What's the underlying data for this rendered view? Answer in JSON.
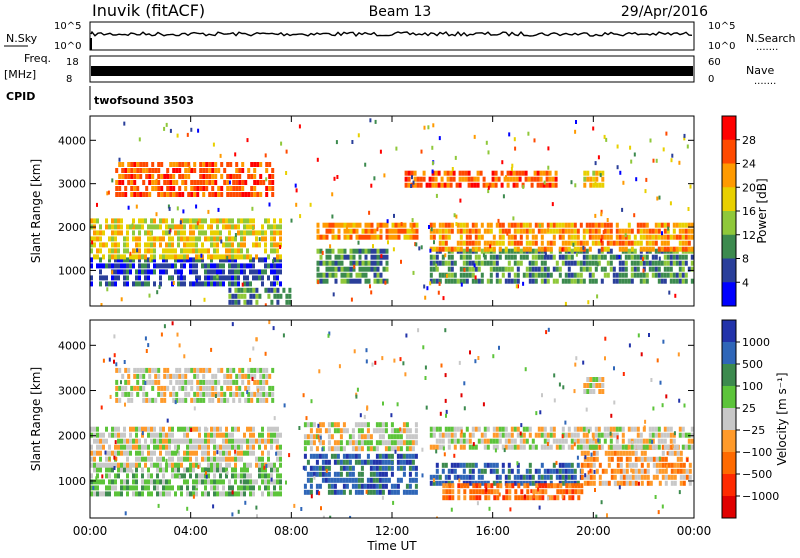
{
  "header": {
    "station": "Inuvik (fitACF)",
    "beam": "Beam 13",
    "date": "29/Apr/2016"
  },
  "top_panels": {
    "nsky_label": "N.Sky",
    "nsky_ticks": [
      "10^5",
      "10^0"
    ],
    "nsearch_label": "N.Search",
    "nsearch_ticks": [
      "10^5",
      "10^0"
    ],
    "freq_label_1": "Freq.",
    "freq_label_2": "[MHz]",
    "freq_ticks": [
      "18",
      "8"
    ],
    "nave_label": "Nave",
    "nave_ticks": [
      "60",
      "0"
    ],
    "cpid_label": "CPID",
    "cpid_value": "twofsound 3503",
    "dots": "......."
  },
  "chart_data": [
    {
      "type": "heatmap",
      "name": "power",
      "ylabel": "Slant Range [km]",
      "yticks": [
        "4000",
        "3000",
        "2000",
        "1000"
      ],
      "ytick_values": [
        4000,
        3000,
        2000,
        1000
      ],
      "ylim": [
        180,
        4560
      ],
      "xlim_hours": [
        0,
        24
      ],
      "colorbar_label": "Power [dB]",
      "colorbar_ticks": [
        "28",
        "24",
        "20",
        "16",
        "12",
        "8",
        "4"
      ],
      "colorbar_colors": [
        "#ff0000",
        "#ff4a00",
        "#ff9a00",
        "#e8d000",
        "#8fc83a",
        "#3c8a4e",
        "#2a3f9a",
        "#0000ff"
      ],
      "bands": [
        {
          "x0": 0.0,
          "x1": 7.6,
          "y0": 700,
          "y1": 1300,
          "level": 6
        },
        {
          "x0": 0.0,
          "x1": 7.6,
          "y0": 1300,
          "y1": 2200,
          "level": 3
        },
        {
          "x0": 1.0,
          "x1": 7.2,
          "y0": 2800,
          "y1": 3500,
          "level": 1
        },
        {
          "x0": 5.5,
          "x1": 8.0,
          "y0": 200,
          "y1": 600,
          "level": 5
        },
        {
          "x0": 9.0,
          "x1": 11.8,
          "y0": 800,
          "y1": 1500,
          "level": 5
        },
        {
          "x0": 9.0,
          "x1": 13.0,
          "y0": 1700,
          "y1": 2100,
          "level": 2
        },
        {
          "x0": 13.5,
          "x1": 23.9,
          "y0": 800,
          "y1": 1500,
          "level": 5
        },
        {
          "x0": 13.5,
          "x1": 23.9,
          "y0": 1500,
          "y1": 2100,
          "level": 2
        },
        {
          "x0": 19.6,
          "x1": 20.4,
          "y0": 3000,
          "y1": 3300,
          "level": 3
        },
        {
          "x0": 12.5,
          "x1": 18.5,
          "y0": 2900,
          "y1": 3300,
          "level": 1
        }
      ]
    },
    {
      "type": "heatmap",
      "name": "velocity",
      "ylabel": "Slant Range [km]",
      "yticks": [
        "4000",
        "3000",
        "2000",
        "1000"
      ],
      "ytick_values": [
        4000,
        3000,
        2000,
        1000
      ],
      "ylim": [
        180,
        4560
      ],
      "xlim_hours": [
        0,
        24
      ],
      "xticks": [
        "00:00",
        "04:00",
        "08:00",
        "12:00",
        "16:00",
        "20:00",
        "00:00"
      ],
      "xtick_values": [
        0,
        4,
        8,
        12,
        16,
        20,
        24
      ],
      "xlabel": "Time UT",
      "colorbar_label": "Velocity [m s⁻¹]",
      "colorbar_ticks": [
        "1000",
        "500",
        "100",
        "25",
        "−25",
        "−100",
        "−500",
        "−1000"
      ],
      "colorbar_colors": [
        "#2233aa",
        "#2f66b8",
        "#3c8a4e",
        "#5cc43a",
        "#c8c8c8",
        "#ff9a2a",
        "#ff6a00",
        "#ff2a00",
        "#e00000"
      ],
      "bands": [
        {
          "x0": 0.0,
          "x1": 7.6,
          "y0": 700,
          "y1": 1300,
          "level": 3
        },
        {
          "x0": 0.0,
          "x1": 7.6,
          "y0": 1300,
          "y1": 2200,
          "level": 4
        },
        {
          "x0": 1.0,
          "x1": 7.2,
          "y0": 2800,
          "y1": 3500,
          "level": 4
        },
        {
          "x0": 8.5,
          "x1": 13.0,
          "y0": 800,
          "y1": 1600,
          "level": 1
        },
        {
          "x0": 8.5,
          "x1": 13.0,
          "y0": 1700,
          "y1": 2300,
          "level": 4
        },
        {
          "x0": 13.5,
          "x1": 19.5,
          "y0": 900,
          "y1": 1400,
          "level": 1
        },
        {
          "x0": 14.0,
          "x1": 19.5,
          "y0": 600,
          "y1": 950,
          "level": 6
        },
        {
          "x0": 19.5,
          "x1": 23.9,
          "y0": 900,
          "y1": 1800,
          "level": 5
        },
        {
          "x0": 13.5,
          "x1": 23.9,
          "y0": 1700,
          "y1": 2200,
          "level": 4
        },
        {
          "x0": 19.6,
          "x1": 20.4,
          "y0": 3000,
          "y1": 3300,
          "level": 4
        }
      ]
    }
  ]
}
